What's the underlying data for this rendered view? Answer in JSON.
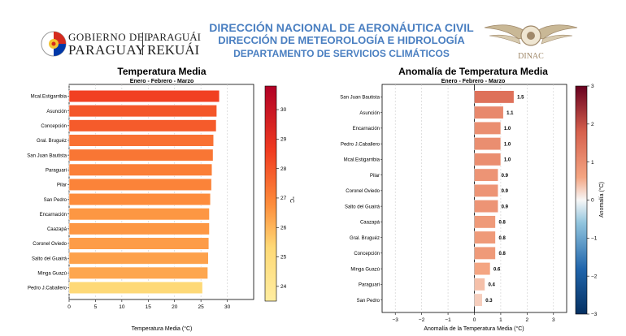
{
  "header": {
    "gov_left_line1": "GOBIERNO DEL",
    "gov_left_line2": "PARAGUAY",
    "gov_right_line1": "PARAGUÁI",
    "gov_right_line2": "REKUÁI",
    "title_line1": "DIRECCIÓN NACIONAL DE AERONÁUTICA CIVIL",
    "title_line2": "DIRECCIÓN DE METEOROLOGÍA  E HIDROLOGÍA",
    "title_line3": "DEPARTAMENTO DE SERVICIOS CLIMÁTICOS",
    "dinac_label": "DINAC",
    "colors": {
      "title_blue": "#4a7fc1",
      "flag_red": "#d52b1e",
      "flag_blue": "#0038a8"
    }
  },
  "chart_data": [
    {
      "type": "bar",
      "orientation": "horizontal",
      "title": "Temperatura Media",
      "subtitle": "Enero - Febrero - Marzo",
      "xlabel": "Temperatura Media (°C)",
      "ylabel": "",
      "xlim": [
        0,
        35
      ],
      "xticks": [
        0,
        5,
        10,
        15,
        20,
        25,
        30
      ],
      "grid": true,
      "categories": [
        "Mcal.Estigarribia",
        "Asunción",
        "Concepción",
        "Gral. Bruguéz",
        "San Juan Bautista",
        "Paraguari",
        "Pilar",
        "San Pedro",
        "Encarnación",
        "Caazapá",
        "Coronel Oviedo",
        "Salto del Guairá",
        "Minga Guazú",
        "Pedro J.Caballero"
      ],
      "values": [
        28.5,
        28.0,
        27.9,
        27.4,
        27.3,
        27.1,
        27.0,
        26.8,
        26.6,
        26.6,
        26.5,
        26.4,
        26.3,
        25.3
      ],
      "colorbar": {
        "label": "°C",
        "min": 23.5,
        "max": 30.8,
        "ticks": [
          24,
          25,
          26,
          27,
          28,
          29,
          30
        ],
        "colormap": "YlOrRd"
      }
    },
    {
      "type": "bar",
      "orientation": "horizontal",
      "title": "Anomalía de Temperatura Media",
      "subtitle": "Enero - Febrero - Marzo",
      "xlabel": "Anomalía de la Temperatura Media (°C)",
      "ylabel": "",
      "xlim": [
        -3.5,
        3.5
      ],
      "xticks": [
        -3,
        -2,
        -1,
        0,
        1,
        2,
        3
      ],
      "grid": true,
      "categories": [
        "San Juan Bautista",
        "Asunción",
        "Encarnación",
        "Pedro J.Caballero",
        "Mcal.Estigarribia",
        "Pilar",
        "Coronel Oviedo",
        "Salto del Guairá",
        "Caazapá",
        "Gral. Bruguéz",
        "Concepción",
        "Minga Guazú",
        "Paraguari",
        "San Pedro"
      ],
      "values": [
        1.5,
        1.1,
        1.0,
        1.0,
        1.0,
        0.9,
        0.9,
        0.9,
        0.8,
        0.8,
        0.8,
        0.6,
        0.4,
        0.3
      ],
      "value_labels": [
        "1.5",
        "1.1",
        "1.0",
        "1.0",
        "1.0",
        "0.9",
        "0.9",
        "0.9",
        "0.8",
        "0.8",
        "0.8",
        "0.6",
        "0.4",
        "0.3"
      ],
      "colorbar": {
        "label": "Anomalía (°C)",
        "min": -3,
        "max": 3,
        "ticks": [
          -3,
          -2,
          -1,
          0,
          1,
          2,
          3
        ],
        "tick_labels": [
          "−3",
          "−2",
          "−1",
          "0",
          "1",
          "2",
          "3"
        ],
        "colormap": "RdBu_r"
      }
    }
  ]
}
